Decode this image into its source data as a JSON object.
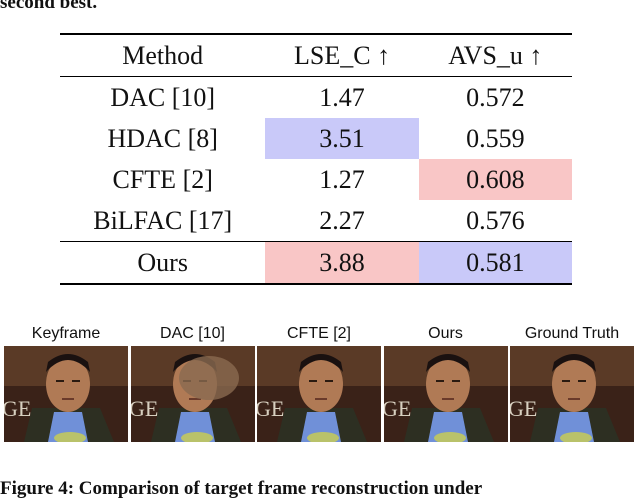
{
  "previous_caption_tail": "second best.",
  "table": {
    "headers": [
      "Method",
      "LSE_C ↑",
      "AVS_u ↑"
    ],
    "rows": [
      {
        "method": "DAC [10]",
        "lse_c": "1.47",
        "avs_u": "0.572"
      },
      {
        "method": "HDAC [8]",
        "lse_c": "3.51",
        "avs_u": "0.559"
      },
      {
        "method": "CFTE [2]",
        "lse_c": "1.27",
        "avs_u": "0.608"
      },
      {
        "method": "BiLFAC [17]",
        "lse_c": "2.27",
        "avs_u": "0.576"
      },
      {
        "method": "Ours",
        "lse_c": "3.88",
        "avs_u": "0.581"
      }
    ]
  },
  "colors": {
    "best": "#f9c6c6",
    "second": "#c9c9f9"
  },
  "figure": {
    "panels": [
      "Keyframe",
      "DAC [10]",
      "CFTE [2]",
      "Ours",
      "Ground Truth"
    ],
    "caption": "Figure 4: Comparison of target frame reconstruction under"
  }
}
